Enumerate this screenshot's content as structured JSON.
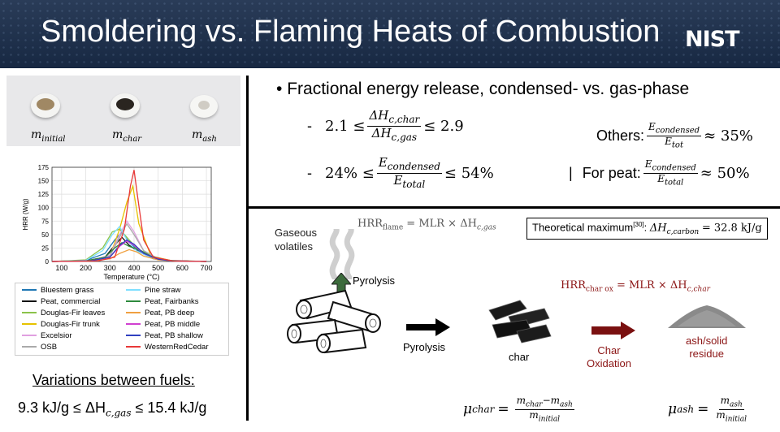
{
  "header": {
    "title": "Smoldering vs. Flaming Heats of Combustion",
    "logo": "NIST"
  },
  "samples": {
    "initial_label": "m",
    "initial_sub": "initial",
    "char_label": "m",
    "char_sub": "char",
    "ash_label": "m",
    "ash_sub": "ash"
  },
  "chart_data": {
    "type": "line",
    "xlabel": "Temperature (°C)",
    "ylabel": "HRR (W/g)",
    "xlim": [
      60,
      720
    ],
    "ylim": [
      0,
      175
    ],
    "xticks": [
      "100",
      "200",
      "300",
      "400",
      "500",
      "600",
      "700"
    ],
    "yticks": [
      "0",
      "25",
      "50",
      "75",
      "100",
      "125",
      "150",
      "175"
    ],
    "grid": true,
    "legend_placement": "below",
    "series": [
      {
        "name": "Bluestem grass",
        "color": "#1f77b4",
        "x": [
          60,
          200,
          280,
          320,
          350,
          380,
          420,
          480,
          560,
          700
        ],
        "y": [
          0,
          2,
          15,
          40,
          55,
          35,
          20,
          6,
          1,
          0
        ]
      },
      {
        "name": "Peat, commercial",
        "color": "#111111",
        "x": [
          60,
          200,
          280,
          320,
          350,
          380,
          420,
          480,
          560,
          700
        ],
        "y": [
          0,
          1,
          8,
          30,
          45,
          30,
          18,
          5,
          1,
          0
        ]
      },
      {
        "name": "Douglas-Fir leaves",
        "color": "#8bc34a",
        "x": [
          60,
          200,
          270,
          310,
          340,
          370,
          410,
          480,
          560,
          700
        ],
        "y": [
          0,
          3,
          25,
          55,
          60,
          45,
          25,
          8,
          1,
          0
        ]
      },
      {
        "name": "Douglas-Fir trunk",
        "color": "#e6c200",
        "x": [
          60,
          220,
          300,
          340,
          370,
          395,
          420,
          470,
          560,
          700
        ],
        "y": [
          0,
          1,
          10,
          60,
          110,
          140,
          70,
          10,
          1,
          0
        ]
      },
      {
        "name": "Excelsior",
        "color": "#e0a0e0",
        "x": [
          60,
          220,
          300,
          340,
          370,
          400,
          440,
          500,
          560,
          700
        ],
        "y": [
          0,
          1,
          12,
          50,
          75,
          55,
          20,
          5,
          1,
          0
        ]
      },
      {
        "name": "OSB",
        "color": "#aaaaaa",
        "x": [
          60,
          220,
          300,
          340,
          370,
          400,
          440,
          500,
          560,
          700
        ],
        "y": [
          0,
          1,
          10,
          45,
          70,
          50,
          20,
          5,
          1,
          0
        ]
      },
      {
        "name": "Pine straw",
        "color": "#7fdfff",
        "x": [
          60,
          200,
          270,
          310,
          340,
          370,
          410,
          480,
          560,
          700
        ],
        "y": [
          0,
          2,
          20,
          50,
          65,
          40,
          20,
          5,
          1,
          0
        ]
      },
      {
        "name": "Peat, Fairbanks",
        "color": "#2e8b3e",
        "x": [
          60,
          200,
          280,
          320,
          350,
          380,
          420,
          470,
          540,
          700
        ],
        "y": [
          0,
          1,
          8,
          25,
          35,
          28,
          22,
          10,
          2,
          0
        ]
      },
      {
        "name": "Peat, PB deep",
        "color": "#f0a040",
        "x": [
          60,
          220,
          300,
          340,
          380,
          410,
          440,
          500,
          560,
          700
        ],
        "y": [
          0,
          1,
          5,
          15,
          22,
          18,
          10,
          3,
          1,
          0
        ]
      },
      {
        "name": "Peat, PB middle",
        "color": "#d040d0",
        "x": [
          60,
          220,
          300,
          340,
          370,
          400,
          440,
          500,
          560,
          700
        ],
        "y": [
          0,
          1,
          8,
          28,
          38,
          30,
          15,
          4,
          1,
          0
        ]
      },
      {
        "name": "Peat, PB shallow",
        "color": "#3040c0",
        "x": [
          60,
          220,
          300,
          340,
          370,
          400,
          440,
          500,
          560,
          700
        ],
        "y": [
          0,
          1,
          8,
          30,
          40,
          32,
          15,
          4,
          1,
          0
        ]
      },
      {
        "name": "WesternRedCedar",
        "color": "#e83838",
        "x": [
          60,
          250,
          320,
          360,
          385,
          400,
          415,
          440,
          480,
          560,
          700
        ],
        "y": [
          0,
          1,
          8,
          60,
          140,
          170,
          120,
          40,
          8,
          1,
          0
        ]
      }
    ]
  },
  "variations": {
    "heading": "Variations between fuels:",
    "low": "9.3 kJ/g ≤",
    "delta": "ΔH",
    "sub": "c,gas",
    "high": "≤ 15.4 kJ/g"
  },
  "bullet": {
    "mark": "•",
    "text": "Fractional energy release, condensed- vs. gas-phase"
  },
  "eq1": {
    "dash": "-",
    "low": "2.1 ≤",
    "num_main": "ΔH",
    "num_sub": "c,char",
    "den_main": "ΔH",
    "den_sub": "c,gas",
    "high": "≤ 2.9"
  },
  "eq2": {
    "dash": "-",
    "low": "24% ≤",
    "num_main": "E",
    "num_sub": "condensed",
    "den_main": "E",
    "den_sub": "total",
    "high": "≤ 54%"
  },
  "others": {
    "label": "Others:",
    "num_main": "E",
    "num_sub": "condensed",
    "den_main": "E",
    "den_sub": "tot",
    "value": "≈ 35%"
  },
  "peat": {
    "sep": "|",
    "label": "For peat:",
    "num_main": "E",
    "num_sub": "condensed",
    "den_main": "E",
    "den_sub": "total",
    "value": "≈ 50%"
  },
  "lower": {
    "hrr_flame": "HRR",
    "hrr_flame_sub": "flame",
    "hrr_flame_rhs": "= MLR × ΔH",
    "hrr_flame_rhs_sub": "c,gas",
    "theoretical_label": "Theoretical maximum",
    "theoretical_ref": "[30]",
    "theoretical_colon": ":",
    "theoretical_delta": "ΔH",
    "theoretical_sub": "c,carbon",
    "theoretical_value": "= 32.8 kJ/g",
    "gaseous_volatiles": "Gaseous\nvolatiles",
    "pyrolysis_up": "Pyrolysis",
    "pyrolysis_right": "Pyrolysis",
    "hrr_char": "HRR",
    "hrr_char_sub": "char ox",
    "hrr_char_rhs": "= MLR × ΔH",
    "hrr_char_rhs_sub": "c,char",
    "char_label": "char",
    "char_oxidation": "Char\nOxidation",
    "ash_label": "ash/solid\nresidue",
    "mu_char": "μ",
    "mu_char_sub": "char",
    "mu_char_num": "m",
    "mu_char_num_sub1": "char",
    "mu_char_num_mid": "−m",
    "mu_char_num_sub2": "ash",
    "mu_char_den": "m",
    "mu_char_den_sub": "initial",
    "mu_ash": "μ",
    "mu_ash_sub": "ash",
    "mu_ash_num": "m",
    "mu_ash_num_sub": "ash",
    "mu_ash_den": "m",
    "mu_ash_den_sub": "initial"
  },
  "colors": {
    "header_bg": "#1c2d48",
    "accent_red": "#8b1414",
    "arrow_dark": "#000000",
    "arrow_green": "#3c6b3c"
  }
}
